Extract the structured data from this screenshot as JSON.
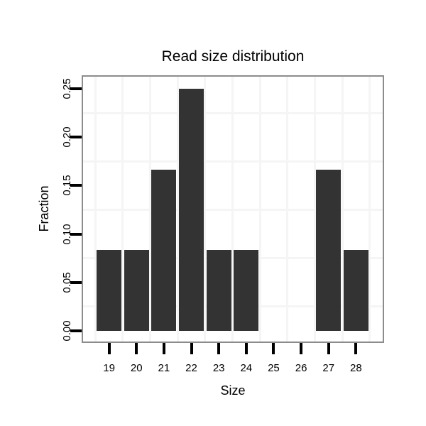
{
  "figure": {
    "background": "#ffffff"
  },
  "chart_data": {
    "type": "bar",
    "title": "Read size distribution",
    "xlabel": "Size",
    "ylabel": "Fraction",
    "categories": [
      "19",
      "20",
      "21",
      "22",
      "23",
      "24",
      "25",
      "26",
      "27",
      "28"
    ],
    "values": [
      0.0833,
      0.0833,
      0.1667,
      0.25,
      0.0833,
      0.0833,
      0,
      0,
      0.1667,
      0.0833
    ],
    "y_ticks": [
      0.0,
      0.05,
      0.1,
      0.15,
      0.2,
      0.25
    ],
    "y_tick_labels": [
      "0.00",
      "0.05",
      "0.10",
      "0.15",
      "0.20",
      "0.25"
    ],
    "ylim": [
      -0.0125,
      0.2625
    ],
    "grid": "minor gridlines only, at midpoints between ticks",
    "legend": "none",
    "bar_color": "#333333",
    "panel_border_color": "#8c8c8c",
    "grid_color": "#f5f5f5",
    "tick_color": "#000000",
    "text_color": "#000000"
  }
}
